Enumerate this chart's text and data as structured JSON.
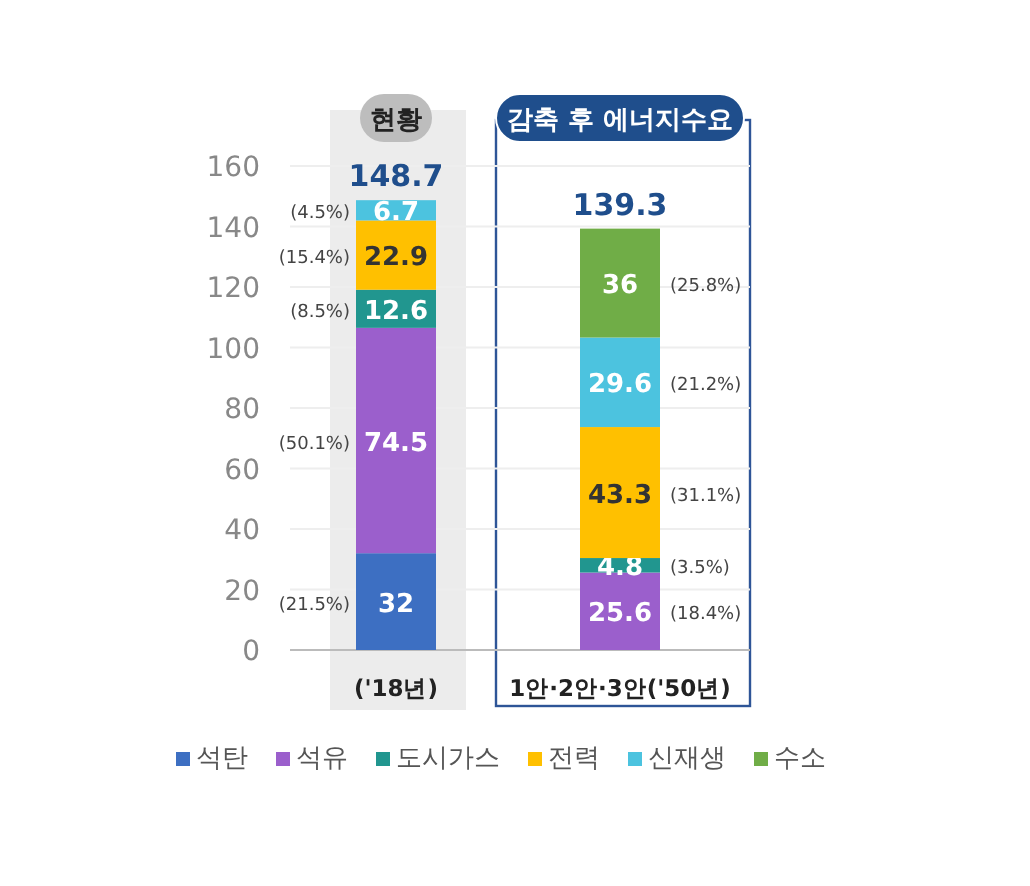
{
  "chart_data": {
    "type": "bar",
    "stacked": true,
    "categories": [
      "('18년)",
      "1안·2안·3안('50년)"
    ],
    "series": [
      {
        "name": "석탄",
        "color": "#3d6fc2",
        "values": [
          32,
          null
        ],
        "value_labels": [
          "32",
          null
        ]
      },
      {
        "name": "석유",
        "color": "#9b5fcc",
        "values": [
          74.5,
          25.6
        ],
        "value_labels": [
          "74.5",
          "25.6"
        ]
      },
      {
        "name": "도시가스",
        "color": "#21968f",
        "values": [
          12.6,
          4.8
        ],
        "value_labels": [
          "12.6",
          "4.8"
        ]
      },
      {
        "name": "전력",
        "color": "#ffc000",
        "values": [
          22.9,
          43.3
        ],
        "value_labels": [
          "22.9",
          "43.3"
        ]
      },
      {
        "name": "신재생",
        "color": "#4cc3df",
        "values": [
          6.7,
          29.6
        ],
        "value_labels": [
          "6.7",
          "29.6"
        ]
      },
      {
        "name": "수소",
        "color": "#70ad47",
        "values": [
          null,
          36
        ],
        "value_labels": [
          null,
          "36"
        ]
      }
    ],
    "totals": [
      "148.7",
      "139.3"
    ],
    "ylim": [
      0,
      160
    ],
    "yticks": [
      0,
      20,
      40,
      60,
      80,
      100,
      120,
      140,
      160
    ],
    "grid": "y",
    "legend": "bottom",
    "annotations": [
      "현황",
      "감축 후 에너지수요",
      "(21.5%)",
      "(50.1%)",
      "(8.5%)",
      "(15.4%)",
      "(4.5%)",
      "(18.4%)",
      "(3.5%)",
      "(31.1%)",
      "(21.2%)",
      "(25.8%)"
    ]
  }
}
